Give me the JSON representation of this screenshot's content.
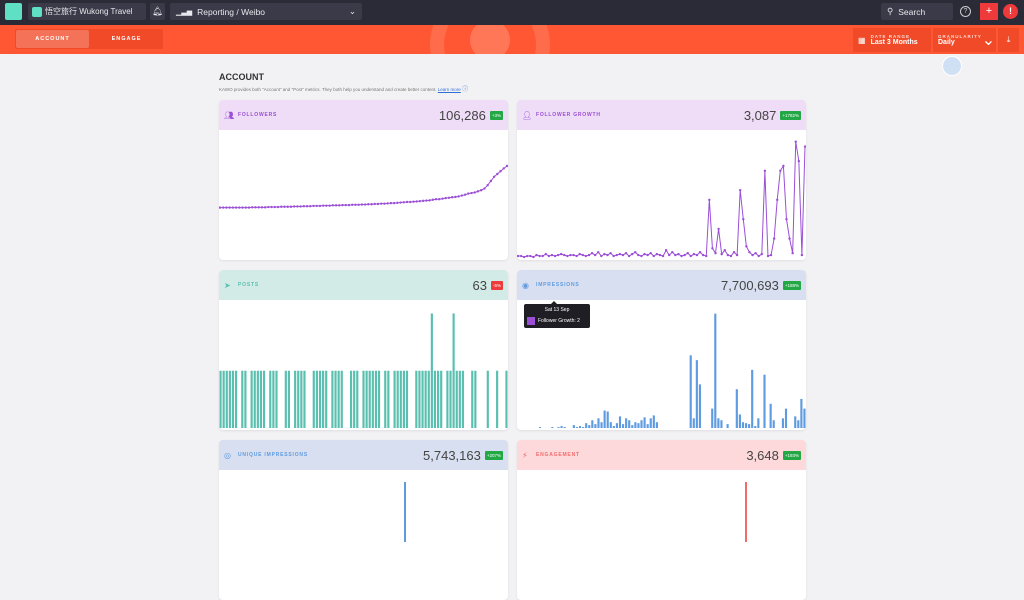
{
  "topbar": {
    "org": "悟空旅行 Wukong Travel",
    "section": "Reporting / Weibo",
    "search": "Search"
  },
  "subnav": {
    "tabs": [
      "ACCOUNT",
      "ENGAGE"
    ],
    "date_range_label": "DATE RANGE",
    "date_range": "Last 3 Months",
    "granularity_label": "GRANULARITY",
    "granularity": "Daily"
  },
  "page": {
    "title": "ACCOUNT",
    "desc": "KAWO provides both \"Account\" and \"Post\" metrics. They both help you understand and create better content.",
    "learn_more": "Learn more"
  },
  "tooltip": {
    "date": "Sat 13 Sep",
    "text": "Follower Growth: 2",
    "color": "#9b4fd6"
  },
  "cards": [
    {
      "title": "FOLLOWERS",
      "value": "106,286",
      "change": "+3%",
      "positive": true,
      "color": "#9b4fd6",
      "bg": "#efdcf7",
      "type": "line",
      "ylim": [
        103000,
        107500
      ],
      "values": [
        104800,
        104800,
        104800,
        104800,
        104800,
        104800,
        104800,
        104800,
        104800,
        104800,
        104810,
        104810,
        104810,
        104810,
        104810,
        104820,
        104820,
        104820,
        104820,
        104830,
        104830,
        104830,
        104830,
        104840,
        104840,
        104840,
        104850,
        104850,
        104850,
        104860,
        104860,
        104860,
        104870,
        104870,
        104870,
        104880,
        104880,
        104880,
        104890,
        104890,
        104890,
        104900,
        104900,
        104900,
        104910,
        104910,
        104920,
        104920,
        104930,
        104930,
        104940,
        104940,
        104950,
        104960,
        104960,
        104970,
        104980,
        104990,
        105000,
        105000,
        105010,
        105020,
        105030,
        105040,
        105050,
        105060,
        105080,
        105100,
        105100,
        105120,
        105140,
        105150,
        105170,
        105180,
        105200,
        105230,
        105260,
        105300,
        105320,
        105340,
        105380,
        105420,
        105480,
        105600,
        105750,
        105900,
        106000,
        106100,
        106200,
        106286
      ]
    },
    {
      "title": "FOLLOWER GROWTH",
      "value": "3,087",
      "change": "+1782%",
      "positive": true,
      "color": "#9b4fd6",
      "bg": "#efdcf7",
      "type": "line",
      "ylim": [
        0,
        130
      ],
      "values": [
        2,
        2,
        1,
        2,
        2,
        1,
        3,
        2,
        2,
        4,
        2,
        3,
        2,
        3,
        4,
        3,
        2,
        3,
        3,
        2,
        4,
        3,
        2,
        3,
        5,
        3,
        6,
        2,
        4,
        3,
        5,
        2,
        3,
        4,
        3,
        5,
        2,
        4,
        6,
        3,
        2,
        4,
        3,
        5,
        2,
        4,
        3,
        2,
        8,
        3,
        6,
        3,
        4,
        2,
        3,
        5,
        2,
        4,
        3,
        6,
        3,
        2,
        60,
        10,
        5,
        30,
        4,
        8,
        3,
        2,
        6,
        3,
        70,
        40,
        12,
        6,
        3,
        5,
        2,
        4,
        90,
        2,
        3,
        20,
        60,
        90,
        95,
        40,
        20,
        5,
        120,
        100,
        3,
        115
      ]
    },
    {
      "title": "POSTS",
      "value": "63",
      "change": "-5%",
      "positive": false,
      "color": "#5bbfb0",
      "bg": "#d2ebe6",
      "type": "bar",
      "ylim": [
        0,
        2.2
      ],
      "values": [
        1,
        1,
        1,
        1,
        1,
        1,
        0,
        1,
        1,
        0,
        1,
        1,
        1,
        1,
        1,
        0,
        1,
        1,
        1,
        0,
        0,
        1,
        1,
        0,
        1,
        1,
        1,
        1,
        0,
        0,
        1,
        1,
        1,
        1,
        1,
        0,
        1,
        1,
        1,
        1,
        0,
        0,
        1,
        1,
        1,
        0,
        1,
        1,
        1,
        1,
        1,
        1,
        0,
        1,
        1,
        0,
        1,
        1,
        1,
        1,
        1,
        0,
        0,
        1,
        1,
        1,
        1,
        1,
        2,
        1,
        1,
        1,
        0,
        1,
        1,
        2,
        1,
        1,
        1,
        0,
        0,
        1,
        1,
        0,
        0,
        0,
        1,
        0,
        0,
        1,
        0,
        0,
        1
      ]
    },
    {
      "title": "IMPRESSIONS",
      "value": "7,700,693",
      "change": "+188%",
      "positive": true,
      "color": "#5f9be0",
      "bg": "#d8dff0",
      "type": "bar",
      "ylim": [
        0,
        130
      ],
      "values": [
        0,
        0,
        0,
        0,
        0,
        0,
        0,
        1,
        0,
        0,
        0,
        1,
        0,
        1,
        2,
        1,
        0,
        0,
        3,
        1,
        2,
        1,
        5,
        3,
        8,
        4,
        10,
        6,
        18,
        17,
        6,
        2,
        5,
        12,
        4,
        10,
        8,
        3,
        6,
        5,
        8,
        11,
        4,
        10,
        13,
        6,
        0,
        0,
        0,
        0,
        0,
        0,
        0,
        0,
        0,
        0,
        75,
        10,
        70,
        45,
        0,
        0,
        0,
        20,
        118,
        10,
        8,
        0,
        4,
        0,
        0,
        40,
        14,
        6,
        5,
        4,
        60,
        2,
        10,
        0,
        55,
        0,
        25,
        8,
        0,
        0,
        10,
        20,
        0,
        0,
        12,
        8,
        30,
        20
      ]
    },
    {
      "title": "UNIQUE IMPRESSIONS",
      "value": "5,743,163",
      "change": "+207%",
      "positive": true,
      "color": "#5f9be0",
      "bg": "#d8dff0",
      "type": "bar",
      "ylim": [
        0,
        30
      ],
      "values": []
    },
    {
      "title": "ENGAGEMENT",
      "value": "3,648",
      "change": "+193%",
      "positive": true,
      "color": "#f26b6b",
      "bg": "#fdd9dc",
      "type": "bar",
      "ylim": [
        0,
        30
      ],
      "values": []
    }
  ]
}
